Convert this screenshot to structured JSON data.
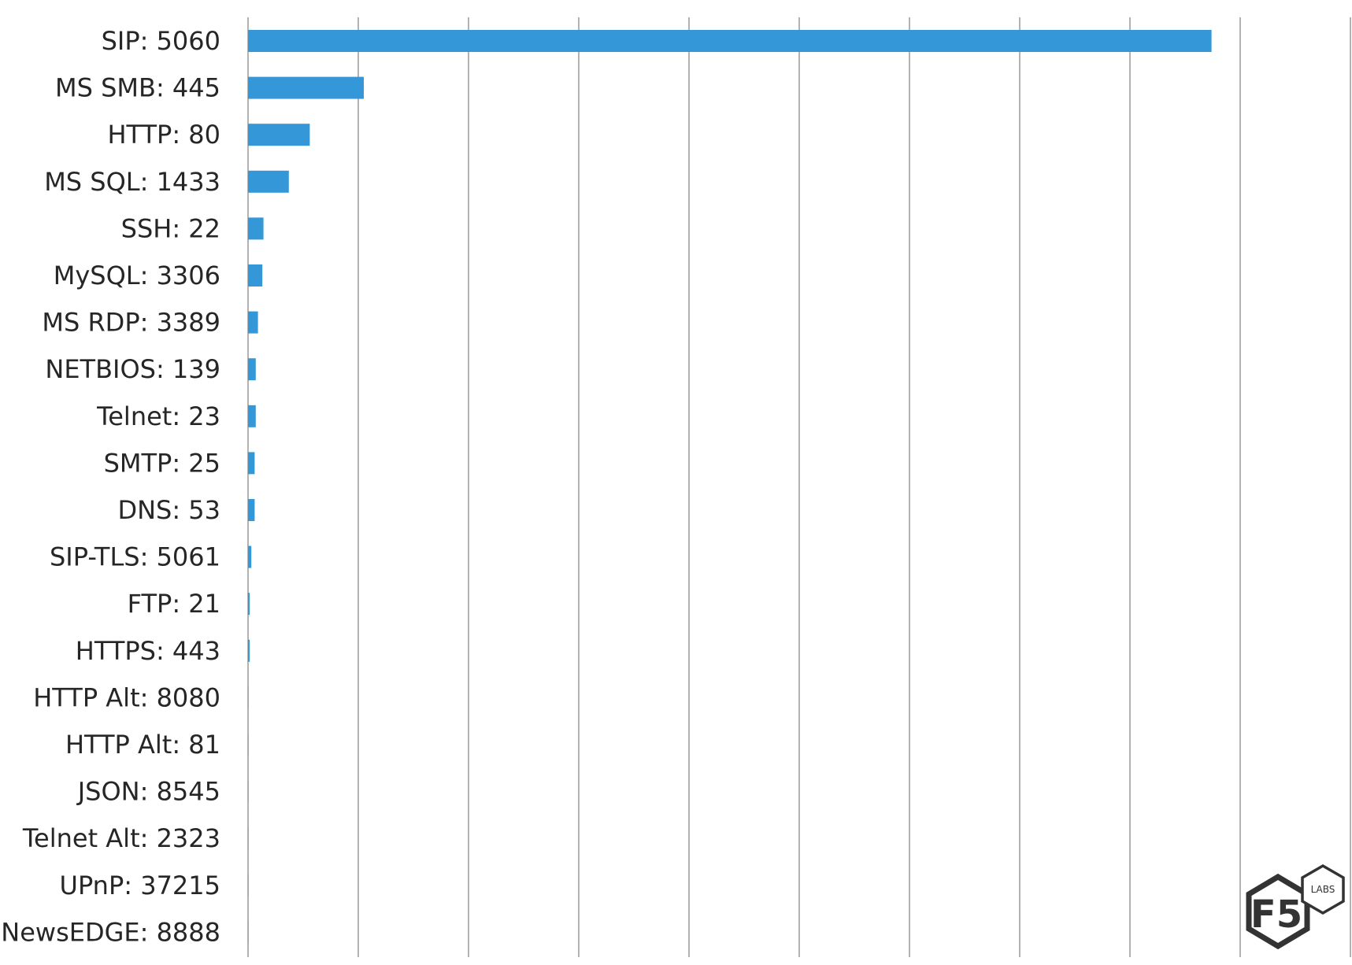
{
  "chart_data": {
    "type": "bar",
    "orientation": "horizontal",
    "categories": [
      "SIP: 5060",
      "MS SMB: 445",
      "HTTP: 80",
      "MS SQL: 1433",
      "SSH: 22",
      "MySQL: 3306",
      "MS RDP: 3389",
      "NETBIOS: 139",
      "Telnet: 23",
      "SMTP: 25",
      "DNS: 53",
      "SIP-TLS: 5061",
      "FTP: 21",
      "HTTPS: 443",
      "HTTP Alt: 8080",
      "HTTP Alt: 81",
      "JSON: 8545",
      "Telnet Alt: 2323",
      "UPnP: 37215",
      "NewsEDGE: 8888"
    ],
    "values": [
      87.4,
      10.5,
      5.6,
      3.7,
      1.4,
      1.3,
      0.9,
      0.7,
      0.7,
      0.6,
      0.6,
      0.3,
      0.15,
      0.15,
      0.02,
      0.02,
      0.02,
      0.02,
      0.02,
      0.02
    ],
    "xlim": [
      0,
      100
    ],
    "x_gridlines": [
      0,
      10,
      20,
      30,
      40,
      50,
      60,
      70,
      80,
      90,
      100
    ],
    "grid": true,
    "bar_color": "#3498d8",
    "title": "",
    "xlabel": "",
    "ylabel": ""
  },
  "logo": {
    "main": "F5",
    "sub": "LABS"
  }
}
